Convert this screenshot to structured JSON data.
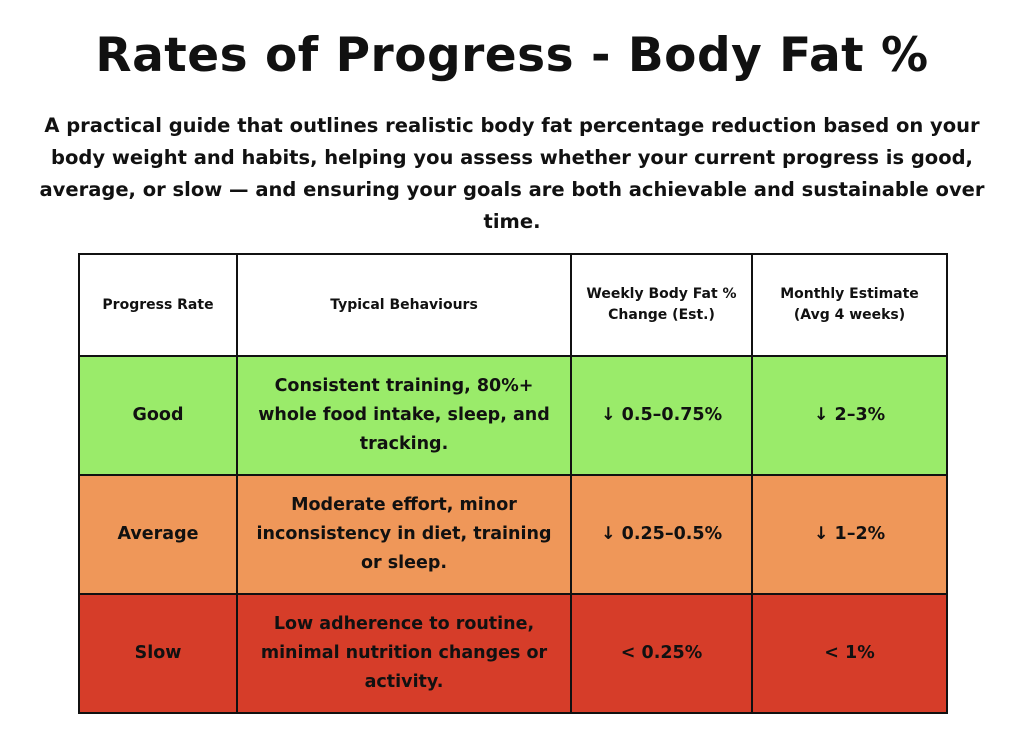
{
  "title": "Rates of Progress - Body Fat %",
  "subtitle": "A practical guide that outlines realistic body fat percentage reduction based on your body weight and habits, helping you assess whether your current progress is good, average, or slow — and ensuring your goals are both achievable and sustainable over time.",
  "table": {
    "headers": [
      "Progress Rate",
      "Typical Behaviours",
      "Weekly Body Fat % Change (Est.)",
      "Monthly Estimate (Avg 4 weeks)"
    ],
    "rows": [
      {
        "rate": "Good",
        "behaviours": "Consistent training, 80%+ whole food intake, sleep, and tracking.",
        "weekly": "↓ 0.5–0.75%",
        "monthly": "↓ 2–3%",
        "color": "#9aeb6a"
      },
      {
        "rate": "Average",
        "behaviours": "Moderate effort, minor inconsistency in diet, training or sleep.",
        "weekly": "↓ 0.25–0.5%",
        "monthly": "↓ 1–2%",
        "color": "#ef9759"
      },
      {
        "rate": "Slow",
        "behaviours": "Low adherence to routine, minimal nutrition changes or activity.",
        "weekly": "< 0.25%",
        "monthly": "< 1%",
        "color": "#d63d29"
      }
    ]
  }
}
